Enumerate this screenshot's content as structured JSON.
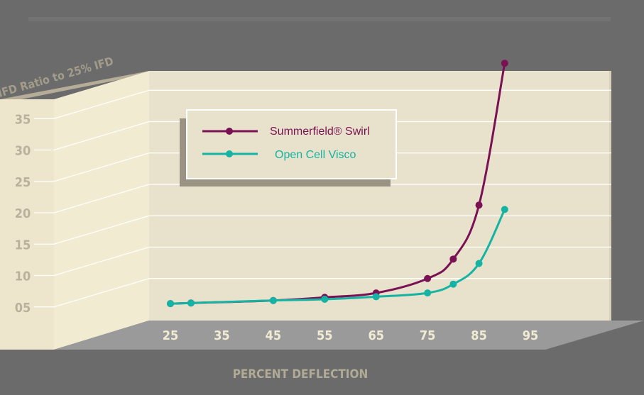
{
  "chart_data": {
    "type": "line",
    "title": "",
    "ylabel": "IFD Ratio to 25% IFD",
    "xlabel": "PERCENT DEFLECTION",
    "xlim": [
      25,
      95
    ],
    "ylim": [
      0,
      40
    ],
    "x_ticks": [
      25,
      35,
      45,
      55,
      65,
      75,
      85,
      95
    ],
    "x_tick_labels": [
      "25",
      "35",
      "45",
      "55",
      "65",
      "75",
      "85",
      "95"
    ],
    "y_ticks": [
      5,
      10,
      15,
      20,
      25,
      30,
      35
    ],
    "y_tick_labels": [
      "05",
      "10",
      "15",
      "20",
      "25",
      "30",
      "35"
    ],
    "grid": true,
    "legend_position": "top-left",
    "series": [
      {
        "name": "Summerfield® Swirl",
        "color": "#7a1155",
        "points": [
          [
            25,
            1.0
          ],
          [
            29,
            1.1
          ],
          [
            45,
            1.5
          ],
          [
            55,
            2.0
          ],
          [
            65,
            2.7
          ],
          [
            75,
            5.0
          ],
          [
            80,
            8.1
          ],
          [
            85,
            16.7
          ],
          [
            90,
            39.3
          ]
        ]
      },
      {
        "name": "Open Cell Visco",
        "color": "#14b3a3",
        "points": [
          [
            25,
            1.0
          ],
          [
            29,
            1.1
          ],
          [
            45,
            1.5
          ],
          [
            55,
            1.7
          ],
          [
            65,
            2.1
          ],
          [
            75,
            2.7
          ],
          [
            80,
            4.1
          ],
          [
            85,
            7.4
          ],
          [
            90,
            16.0
          ]
        ]
      }
    ]
  },
  "colors": {
    "background": "#6b6b6b",
    "plot_back": "#e8e2cc",
    "side_wall": "#f1ebd2",
    "floor": "#9a9a9a",
    "legend_shadow": "#9a9282"
  }
}
